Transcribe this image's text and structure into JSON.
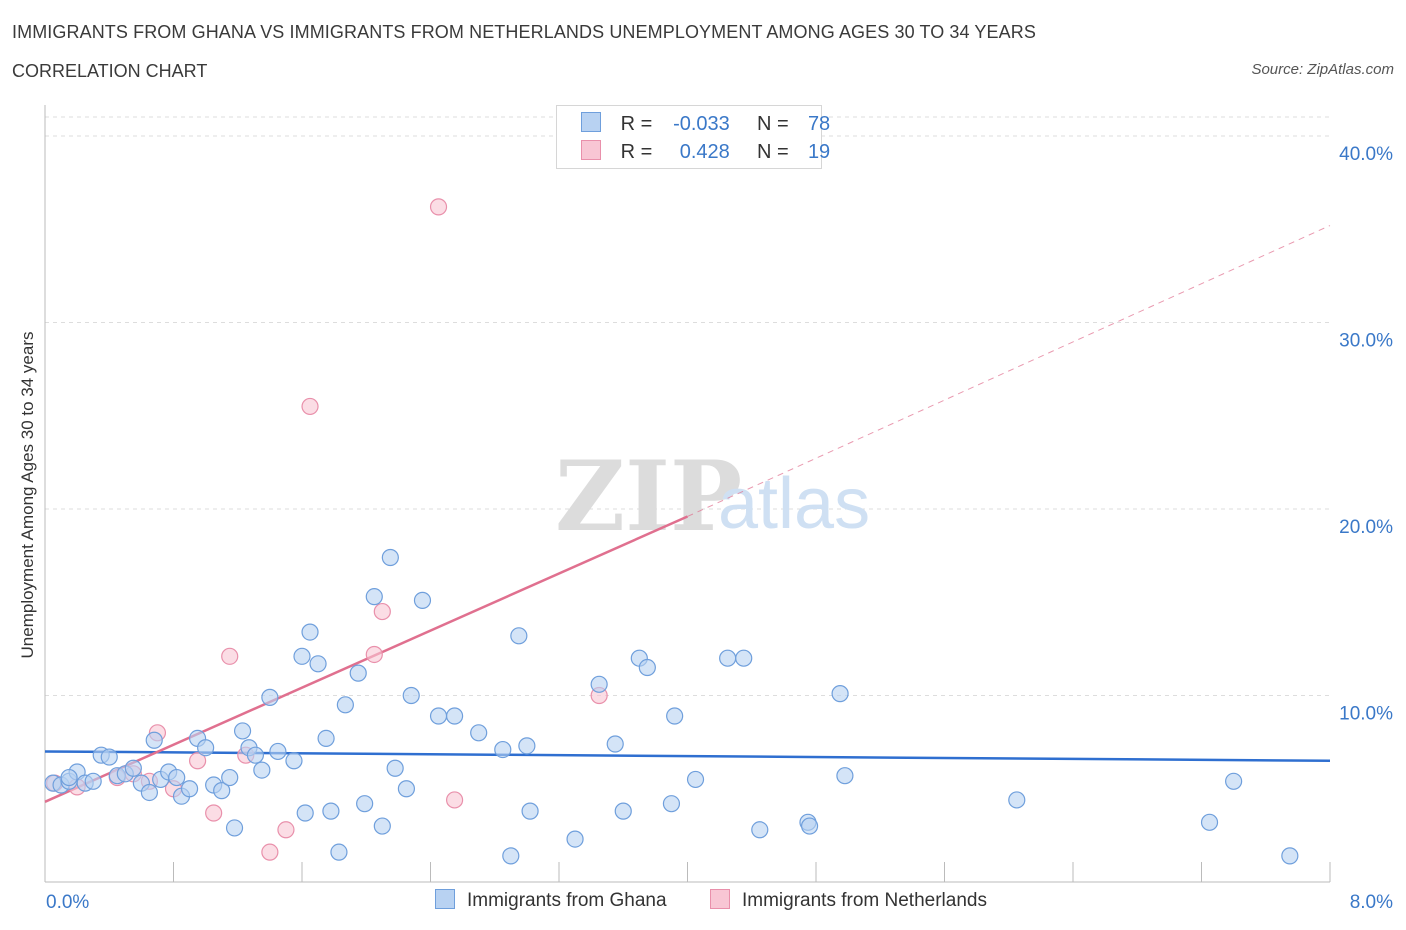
{
  "header": {
    "title": "IMMIGRANTS FROM GHANA VS IMMIGRANTS FROM NETHERLANDS UNEMPLOYMENT AMONG AGES 30 TO 34 YEARS",
    "subtitle": "CORRELATION CHART",
    "source": "Source: ZipAtlas.com"
  },
  "watermark": {
    "zip": "ZIP",
    "atlas": "atlas"
  },
  "legend": {
    "ghana": {
      "r_label": "R =",
      "r_value": "-0.033",
      "n_label": "N =",
      "n_value": "78"
    },
    "netherlands": {
      "r_label": "R =",
      "r_value": "0.428",
      "n_label": "N =",
      "n_value": "19"
    }
  },
  "colors": {
    "ghana_fill": "#b8d2f2",
    "ghana_stroke": "#6f9fdc",
    "ghana_line": "#2f6fd0",
    "netherlands_fill": "#f8c6d4",
    "netherlands_stroke": "#e990ab",
    "netherlands_line": "#e0708f",
    "axis_label": "#3a78c8",
    "grid": "#dddddd"
  },
  "chart_data": {
    "type": "scatter",
    "title": "IMMIGRANTS FROM GHANA VS IMMIGRANTS FROM NETHERLANDS UNEMPLOYMENT AMONG AGES 30 TO 34 YEARS",
    "xlabel": "",
    "ylabel": "Unemployment Among Ages 30 to 34 years",
    "xlim": [
      0,
      8
    ],
    "ylim": [
      0,
      40
    ],
    "x_tick_labels": [
      "0.0%",
      "8.0%"
    ],
    "y_ticks": [
      10,
      20,
      30,
      40
    ],
    "y_tick_labels": [
      "10.0%",
      "20.0%",
      "30.0%",
      "40.0%"
    ],
    "grid": true,
    "legend_position": "bottom",
    "series": [
      {
        "name": "Immigrants from Ghana",
        "points": [
          [
            0.05,
            5.3
          ],
          [
            0.1,
            5.2
          ],
          [
            0.15,
            5.4
          ],
          [
            0.2,
            5.9
          ],
          [
            0.25,
            5.3
          ],
          [
            0.3,
            5.4
          ],
          [
            0.35,
            6.8
          ],
          [
            0.4,
            6.7
          ],
          [
            0.45,
            5.7
          ],
          [
            0.5,
            5.8
          ],
          [
            0.55,
            6.1
          ],
          [
            0.6,
            5.3
          ],
          [
            0.65,
            4.8
          ],
          [
            0.68,
            7.6
          ],
          [
            0.72,
            5.5
          ],
          [
            0.77,
            5.9
          ],
          [
            0.82,
            5.6
          ],
          [
            0.85,
            4.6
          ],
          [
            0.9,
            5.0
          ],
          [
            0.95,
            7.7
          ],
          [
            1.0,
            7.2
          ],
          [
            1.05,
            5.2
          ],
          [
            1.1,
            4.9
          ],
          [
            1.15,
            5.6
          ],
          [
            1.18,
            2.9
          ],
          [
            1.23,
            8.1
          ],
          [
            1.27,
            7.2
          ],
          [
            1.31,
            6.8
          ],
          [
            1.35,
            6.0
          ],
          [
            1.4,
            9.9
          ],
          [
            1.45,
            7.0
          ],
          [
            1.55,
            6.5
          ],
          [
            1.6,
            12.1
          ],
          [
            1.62,
            3.7
          ],
          [
            1.65,
            13.4
          ],
          [
            1.7,
            11.7
          ],
          [
            1.75,
            7.7
          ],
          [
            1.78,
            3.8
          ],
          [
            1.83,
            1.6
          ],
          [
            1.87,
            9.5
          ],
          [
            1.95,
            11.2
          ],
          [
            1.99,
            4.2
          ],
          [
            2.05,
            15.3
          ],
          [
            2.1,
            3.0
          ],
          [
            2.15,
            17.4
          ],
          [
            2.18,
            6.1
          ],
          [
            2.25,
            5.0
          ],
          [
            2.28,
            10.0
          ],
          [
            2.35,
            15.1
          ],
          [
            2.45,
            8.9
          ],
          [
            2.55,
            8.9
          ],
          [
            2.7,
            8.0
          ],
          [
            2.85,
            7.1
          ],
          [
            2.9,
            1.4
          ],
          [
            2.95,
            13.2
          ],
          [
            3.0,
            7.3
          ],
          [
            3.02,
            3.8
          ],
          [
            3.3,
            2.3
          ],
          [
            3.45,
            10.6
          ],
          [
            3.55,
            7.4
          ],
          [
            3.6,
            3.8
          ],
          [
            3.7,
            12.0
          ],
          [
            3.75,
            11.5
          ],
          [
            3.9,
            4.2
          ],
          [
            3.92,
            8.9
          ],
          [
            4.05,
            5.5
          ],
          [
            4.25,
            12.0
          ],
          [
            4.35,
            12.0
          ],
          [
            4.45,
            2.8
          ],
          [
            4.75,
            3.2
          ],
          [
            4.76,
            3.0
          ],
          [
            4.95,
            10.1
          ],
          [
            4.98,
            5.7
          ],
          [
            6.05,
            4.4
          ],
          [
            7.25,
            3.2
          ],
          [
            7.4,
            5.4
          ],
          [
            7.75,
            1.4
          ],
          [
            0.15,
            5.6
          ]
        ]
      },
      {
        "name": "Immigrants from Netherlands",
        "points": [
          [
            0.06,
            5.3
          ],
          [
            0.2,
            5.1
          ],
          [
            0.45,
            5.6
          ],
          [
            0.55,
            5.8
          ],
          [
            0.7,
            8.0
          ],
          [
            0.8,
            5.0
          ],
          [
            0.95,
            6.5
          ],
          [
            1.05,
            3.7
          ],
          [
            1.15,
            12.1
          ],
          [
            1.25,
            6.8
          ],
          [
            1.4,
            1.6
          ],
          [
            1.5,
            2.8
          ],
          [
            1.65,
            25.5
          ],
          [
            2.05,
            12.2
          ],
          [
            2.1,
            14.5
          ],
          [
            2.45,
            36.2
          ],
          [
            2.55,
            4.4
          ],
          [
            3.45,
            10.0
          ],
          [
            0.65,
            5.4
          ]
        ]
      }
    ],
    "trendlines": [
      {
        "series": "Immigrants from Ghana",
        "x": [
          0,
          8
        ],
        "y": [
          7.0,
          6.5
        ]
      },
      {
        "series": "Immigrants from Netherlands",
        "x": [
          0,
          4.0
        ],
        "y": [
          4.3,
          19.6
        ],
        "dashed_extension": {
          "x": [
            4.0,
            8.0
          ],
          "y": [
            19.6,
            35.2
          ]
        }
      }
    ]
  },
  "bottom_legend": {
    "ghana_label": "Immigrants from Ghana",
    "netherlands_label": "Immigrants from Netherlands"
  }
}
